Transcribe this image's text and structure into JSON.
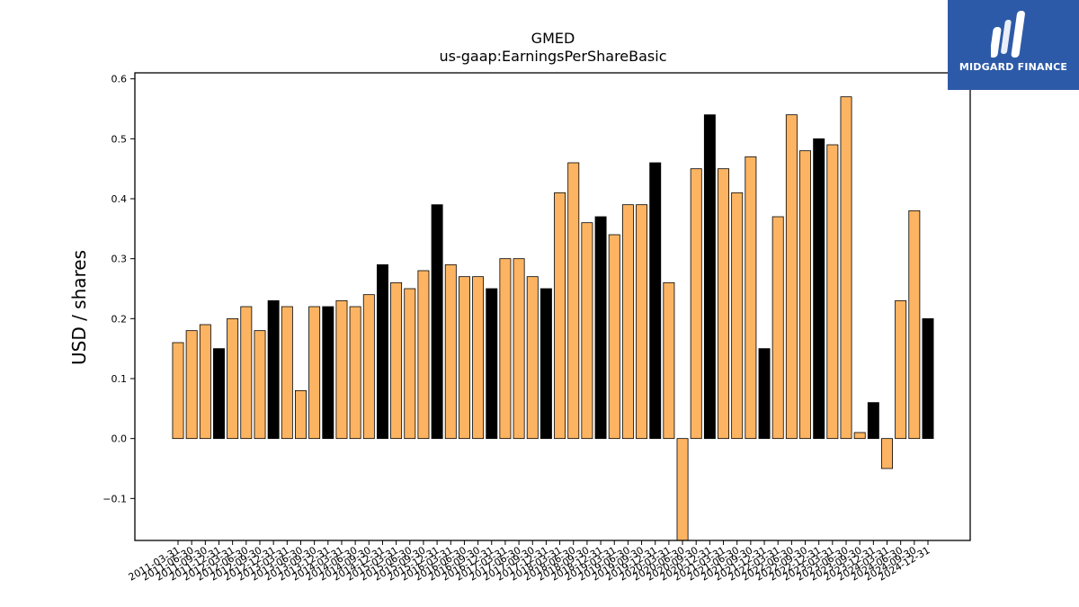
{
  "brand": {
    "name": "MIDGARD FINANCE",
    "color": "#2d5aa8",
    "icon": "midgard-logo-icon"
  },
  "chart_data": {
    "type": "bar",
    "title": "GMED",
    "subtitle": "us-gaap:EarningsPerShareBasic",
    "xlabel": "",
    "ylabel": "USD / shares",
    "ylim": [
      -0.17,
      0.61
    ],
    "yticks": [
      -0.1,
      0.0,
      0.1,
      0.2,
      0.3,
      0.4,
      0.5,
      0.6
    ],
    "ytick_labels": [
      "−0.1",
      "0.0",
      "0.1",
      "0.2",
      "0.3",
      "0.4",
      "0.5",
      "0.6"
    ],
    "grid": false,
    "colors": {
      "quarter": "#fdb462",
      "annual": "#000000",
      "edge": "#000000"
    },
    "categories": [
      "2011-03-31",
      "2011-06-30",
      "2011-09-30",
      "2011-12-31",
      "2012-03-31",
      "2012-06-30",
      "2012-09-30",
      "2012-12-31",
      "2013-03-31",
      "2013-06-30",
      "2013-09-30",
      "2013-12-31",
      "2014-03-31",
      "2014-06-30",
      "2014-09-30",
      "2014-12-31",
      "2015-03-31",
      "2015-06-30",
      "2015-09-30",
      "2015-12-31",
      "2016-03-31",
      "2016-06-30",
      "2016-09-30",
      "2016-12-31",
      "2017-03-31",
      "2017-06-30",
      "2017-09-30",
      "2017-12-31",
      "2018-03-31",
      "2018-06-30",
      "2018-09-30",
      "2018-12-31",
      "2019-03-31",
      "2019-06-30",
      "2019-09-30",
      "2019-12-31",
      "2020-03-31",
      "2020-06-30",
      "2020-09-30",
      "2020-12-31",
      "2021-03-31",
      "2021-06-30",
      "2021-09-30",
      "2021-12-31",
      "2022-03-31",
      "2022-06-30",
      "2022-09-30",
      "2022-12-31",
      "2023-03-31",
      "2023-06-30",
      "2023-09-30",
      "2023-12-31",
      "2024-03-31",
      "2024-06-30",
      "2024-09-30",
      "2024-12-31"
    ],
    "values": [
      0.16,
      0.18,
      0.19,
      0.15,
      0.2,
      0.22,
      0.18,
      0.23,
      0.22,
      0.08,
      0.22,
      0.22,
      0.23,
      0.22,
      0.24,
      0.29,
      0.26,
      0.25,
      0.28,
      0.39,
      0.29,
      0.27,
      0.27,
      0.25,
      0.3,
      0.3,
      0.27,
      0.25,
      0.41,
      0.46,
      0.36,
      0.37,
      0.34,
      0.39,
      0.39,
      0.46,
      0.26,
      -0.19,
      0.45,
      0.54,
      0.45,
      0.41,
      0.47,
      0.15,
      0.37,
      0.54,
      0.48,
      0.5,
      0.49,
      0.57,
      0.01,
      0.06,
      -0.05,
      0.23,
      0.38,
      0.2
    ],
    "annual_flags": [
      0,
      0,
      0,
      1,
      0,
      0,
      0,
      1,
      0,
      0,
      0,
      1,
      0,
      0,
      0,
      1,
      0,
      0,
      0,
      1,
      0,
      0,
      0,
      1,
      0,
      0,
      0,
      1,
      0,
      0,
      0,
      1,
      0,
      0,
      0,
      1,
      0,
      0,
      0,
      1,
      0,
      0,
      0,
      1,
      0,
      0,
      0,
      1,
      0,
      0,
      0,
      1,
      0,
      0,
      0,
      1
    ]
  }
}
